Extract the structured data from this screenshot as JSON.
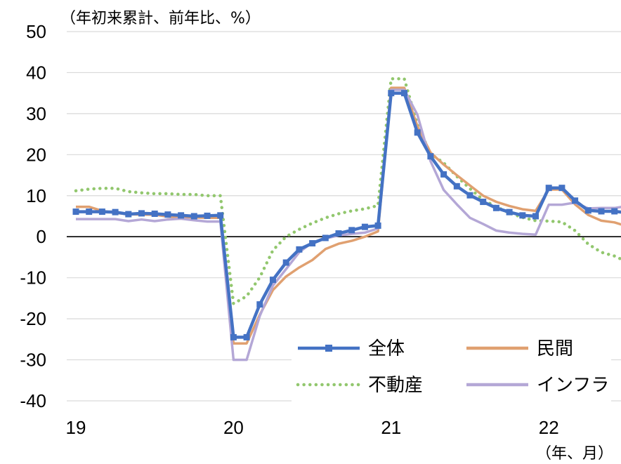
{
  "chart_data": {
    "type": "line",
    "ylabel": "（年初来累計、前年比、%）",
    "xlabel": "（年、月）",
    "ylim": [
      -40,
      50
    ],
    "yticks": [
      50,
      40,
      30,
      20,
      10,
      0,
      -10,
      -20,
      -30,
      -40
    ],
    "x_tick_labels": [
      "19",
      "20",
      "21",
      "22"
    ],
    "x_tick_months": [
      0,
      12,
      24,
      36
    ],
    "grid": "horizontal",
    "legend_position": "bottom-right",
    "series": [
      {
        "name": "全体",
        "color": "#4472c4",
        "style": "solid-square-markers",
        "x": [
          0,
          1,
          2,
          3,
          4,
          5,
          6,
          7,
          8,
          9,
          10,
          11,
          12,
          13,
          14,
          15,
          16,
          17,
          18,
          19,
          20,
          21,
          22,
          23,
          24,
          25,
          26,
          27,
          28,
          29,
          30,
          31,
          32,
          33,
          34,
          35,
          36,
          37,
          38,
          39,
          40,
          41,
          42
        ],
        "values": [
          6.1,
          6.1,
          6.1,
          6.0,
          5.5,
          5.7,
          5.6,
          5.4,
          5.2,
          5.0,
          5.1,
          5.2,
          -24.5,
          -24.5,
          -16.5,
          -10.5,
          -6.3,
          -3.1,
          -1.6,
          -0.3,
          0.8,
          1.6,
          2.4,
          2.7,
          35.0,
          35.0,
          25.4,
          19.6,
          15.2,
          12.3,
          10.1,
          8.5,
          7.0,
          6.0,
          5.2,
          5.0,
          11.9,
          11.9,
          8.8,
          6.4,
          6.2,
          6.2,
          5.8
        ]
      },
      {
        "name": "民間",
        "color": "#e0a070",
        "style": "solid",
        "x": [
          0,
          1,
          2,
          3,
          4,
          5,
          6,
          7,
          8,
          9,
          10,
          11,
          12,
          13,
          14,
          15,
          16,
          17,
          18,
          19,
          20,
          21,
          22,
          23,
          24,
          25,
          26,
          27,
          28,
          29,
          30,
          31,
          32,
          33,
          34,
          35,
          36,
          37,
          38,
          39,
          40,
          41,
          42
        ],
        "values": [
          7.3,
          7.3,
          6.3,
          5.8,
          5.5,
          5.4,
          5.4,
          4.9,
          4.8,
          4.7,
          4.6,
          4.6,
          -26.0,
          -26.0,
          -19.0,
          -13.0,
          -9.7,
          -7.5,
          -5.7,
          -3.0,
          -1.7,
          -1.0,
          0.0,
          1.3,
          36.3,
          36.3,
          26.9,
          20.5,
          17.6,
          15.0,
          12.5,
          10.0,
          8.5,
          7.5,
          6.7,
          6.3,
          11.5,
          11.5,
          7.9,
          5.3,
          3.9,
          3.5,
          2.5
        ]
      },
      {
        "name": "不動産",
        "color": "#92c76e",
        "style": "dotted",
        "x": [
          0,
          1,
          2,
          3,
          4,
          5,
          6,
          7,
          8,
          9,
          10,
          11,
          12,
          13,
          14,
          15,
          16,
          17,
          18,
          19,
          20,
          21,
          22,
          23,
          24,
          25,
          26,
          27,
          28,
          29,
          30,
          31,
          32,
          33,
          34,
          35,
          36,
          37,
          38,
          39,
          40,
          41,
          42
        ],
        "values": [
          11.2,
          11.6,
          11.8,
          11.8,
          11.0,
          10.7,
          10.5,
          10.5,
          10.3,
          10.3,
          10.0,
          10.0,
          -16.3,
          -14.5,
          -9.9,
          -3.3,
          0.0,
          1.8,
          3.3,
          4.6,
          5.6,
          6.3,
          6.8,
          7.6,
          38.5,
          38.5,
          27.3,
          20.2,
          18.0,
          14.7,
          11.7,
          9.0,
          7.3,
          5.8,
          4.7,
          3.9,
          3.8,
          3.6,
          1.5,
          -1.8,
          -3.8,
          -4.7,
          -6.2
        ]
      },
      {
        "name": "インフラ",
        "color": "#b4a7d6",
        "style": "solid",
        "x": [
          0,
          1,
          2,
          3,
          4,
          5,
          6,
          7,
          8,
          9,
          10,
          11,
          12,
          13,
          14,
          15,
          16,
          17,
          18,
          19,
          20,
          21,
          22,
          23,
          24,
          25,
          26,
          27,
          28,
          29,
          30,
          31,
          32,
          33,
          34,
          35,
          36,
          37,
          38,
          39,
          40,
          41,
          42
        ],
        "values": [
          4.3,
          4.3,
          4.3,
          4.3,
          3.8,
          4.2,
          3.8,
          4.2,
          4.4,
          4.0,
          3.7,
          3.7,
          -30.0,
          -30.0,
          -19.3,
          -11.9,
          -7.9,
          -3.8,
          -1.4,
          -0.4,
          0.3,
          0.7,
          1.0,
          2.0,
          35.8,
          35.8,
          29.7,
          18.4,
          11.4,
          7.9,
          4.6,
          3.1,
          1.5,
          1.0,
          0.7,
          0.5,
          7.8,
          7.8,
          8.3,
          6.9,
          7.0,
          7.0,
          7.5
        ]
      }
    ]
  }
}
